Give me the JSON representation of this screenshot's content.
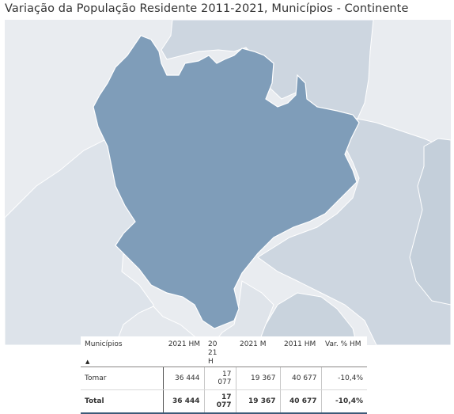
{
  "title": "Variação da População Residente 2011-2021, Municípios - Continente",
  "map": {
    "selected_municipality": "Tomar",
    "colors": {
      "selected": "#7f9db9",
      "neighbor": "#cdd6e0",
      "background": "#e9ecf0",
      "border": "#ffffff"
    }
  },
  "table": {
    "headers": {
      "municipio": "Municípios",
      "hm2021": "2021 HM",
      "h2021": "2021 H",
      "m2021": "2021 M",
      "hm2011": "2011 HM",
      "var": "Var. % HM"
    },
    "sort_icon": "sort-ascending-icon",
    "row": {
      "name": "Tomar",
      "hm2021": "36 444",
      "h2021": "17 077",
      "m2021": "19 367",
      "hm2011": "40 677",
      "var": "-10,4%"
    },
    "total": {
      "name": "Total",
      "hm2021": "36 444",
      "h2021": "17 077",
      "m2021": "19 367",
      "hm2011": "40 677",
      "var": "-10,4%"
    }
  }
}
